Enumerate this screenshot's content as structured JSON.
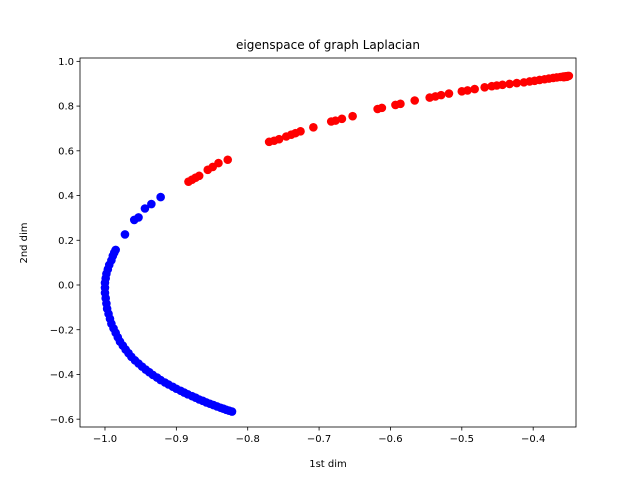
{
  "chart_data": {
    "type": "scatter",
    "title": "eigenspace of graph Laplacian",
    "xlabel": "1st dim",
    "ylabel": "2nd dim",
    "xlim": [
      -1.035,
      -0.34
    ],
    "ylim": [
      -0.635,
      1.015
    ],
    "xticks": [
      -1.0,
      -0.9,
      -0.8,
      -0.7,
      -0.6,
      -0.5,
      -0.4
    ],
    "xtick_labels": [
      "−1.0",
      "−0.9",
      "−0.8",
      "−0.7",
      "−0.6",
      "−0.5",
      "−0.4"
    ],
    "yticks": [
      -0.6,
      -0.4,
      -0.2,
      0.0,
      0.2,
      0.4,
      0.6,
      0.8,
      1.0
    ],
    "ytick_labels": [
      "−0.6",
      "−0.4",
      "−0.2",
      "0.0",
      "0.2",
      "0.4",
      "0.6",
      "0.8",
      "1.0"
    ],
    "grid": false,
    "series": [
      {
        "color": "#0000ff",
        "points": [
          [
            -0.822,
            -0.566
          ],
          [
            -0.826,
            -0.562
          ],
          [
            -0.83,
            -0.558
          ],
          [
            -0.834,
            -0.553
          ],
          [
            -0.838,
            -0.549
          ],
          [
            -0.843,
            -0.543
          ],
          [
            -0.848,
            -0.537
          ],
          [
            -0.853,
            -0.531
          ],
          [
            -0.858,
            -0.525
          ],
          [
            -0.863,
            -0.518
          ],
          [
            -0.868,
            -0.512
          ],
          [
            -0.873,
            -0.504
          ],
          [
            -0.878,
            -0.497
          ],
          [
            -0.884,
            -0.489
          ],
          [
            -0.889,
            -0.481
          ],
          [
            -0.894,
            -0.473
          ],
          [
            -0.9,
            -0.464
          ],
          [
            -0.905,
            -0.455
          ],
          [
            -0.911,
            -0.445
          ],
          [
            -0.916,
            -0.436
          ],
          [
            -0.922,
            -0.425
          ],
          [
            -0.927,
            -0.414
          ],
          [
            -0.933,
            -0.402
          ],
          [
            -0.938,
            -0.39
          ],
          [
            -0.943,
            -0.378
          ],
          [
            -0.948,
            -0.365
          ],
          [
            -0.953,
            -0.351
          ],
          [
            -0.958,
            -0.337
          ],
          [
            -0.963,
            -0.321
          ],
          [
            -0.967,
            -0.305
          ],
          [
            -0.971,
            -0.289
          ],
          [
            -0.975,
            -0.271
          ],
          [
            -0.979,
            -0.253
          ],
          [
            -0.982,
            -0.234
          ],
          [
            -0.985,
            -0.214
          ],
          [
            -0.988,
            -0.194
          ],
          [
            -0.991,
            -0.173
          ],
          [
            -0.993,
            -0.151
          ],
          [
            -0.995,
            -0.129
          ],
          [
            -0.997,
            -0.106
          ],
          [
            -0.998,
            -0.083
          ],
          [
            -0.999,
            -0.059
          ],
          [
            -1.0,
            -0.035
          ],
          [
            -1.0,
            -0.012
          ],
          [
            -1.0,
            0.01
          ],
          [
            -0.999,
            0.03
          ],
          [
            -0.998,
            0.05
          ],
          [
            -0.996,
            0.07
          ],
          [
            -0.994,
            0.09
          ],
          [
            -0.991,
            0.11
          ],
          [
            -0.989,
            0.13
          ],
          [
            -0.987,
            0.145
          ],
          [
            -0.985,
            0.157
          ],
          [
            -0.972,
            0.226
          ],
          [
            -0.959,
            0.291
          ],
          [
            -0.953,
            0.302
          ],
          [
            -0.944,
            0.342
          ],
          [
            -0.935,
            0.362
          ],
          [
            -0.922,
            0.393
          ]
        ]
      },
      {
        "color": "#ff0000",
        "points": [
          [
            -0.883,
            0.462
          ],
          [
            -0.878,
            0.471
          ],
          [
            -0.873,
            0.48
          ],
          [
            -0.868,
            0.488
          ],
          [
            -0.856,
            0.515
          ],
          [
            -0.849,
            0.528
          ],
          [
            -0.841,
            0.545
          ],
          [
            -0.828,
            0.56
          ],
          [
            -0.77,
            0.64
          ],
          [
            -0.763,
            0.645
          ],
          [
            -0.756,
            0.652
          ],
          [
            -0.746,
            0.664
          ],
          [
            -0.739,
            0.672
          ],
          [
            -0.733,
            0.679
          ],
          [
            -0.726,
            0.687
          ],
          [
            -0.708,
            0.705
          ],
          [
            -0.683,
            0.731
          ],
          [
            -0.677,
            0.735
          ],
          [
            -0.668,
            0.743
          ],
          [
            -0.653,
            0.755
          ],
          [
            -0.618,
            0.787
          ],
          [
            -0.612,
            0.792
          ],
          [
            -0.593,
            0.805
          ],
          [
            -0.586,
            0.81
          ],
          [
            -0.566,
            0.825
          ],
          [
            -0.545,
            0.838
          ],
          [
            -0.537,
            0.843
          ],
          [
            -0.529,
            0.849
          ],
          [
            -0.518,
            0.856
          ],
          [
            -0.5,
            0.866
          ],
          [
            -0.492,
            0.87
          ],
          [
            -0.482,
            0.876
          ],
          [
            -0.468,
            0.884
          ],
          [
            -0.458,
            0.889
          ],
          [
            -0.451,
            0.892
          ],
          [
            -0.443,
            0.895
          ],
          [
            -0.433,
            0.899
          ],
          [
            -0.423,
            0.903
          ],
          [
            -0.413,
            0.906
          ],
          [
            -0.405,
            0.91
          ],
          [
            -0.398,
            0.913
          ],
          [
            -0.391,
            0.917
          ],
          [
            -0.384,
            0.92
          ],
          [
            -0.378,
            0.923
          ],
          [
            -0.372,
            0.926
          ],
          [
            -0.367,
            0.928
          ],
          [
            -0.362,
            0.93
          ],
          [
            -0.358,
            0.932
          ],
          [
            -0.355,
            0.933
          ],
          [
            -0.352,
            0.934
          ],
          [
            -0.35,
            0.935
          ],
          [
            -0.353,
            0.931
          ],
          [
            -0.357,
            0.929
          ]
        ]
      }
    ]
  }
}
